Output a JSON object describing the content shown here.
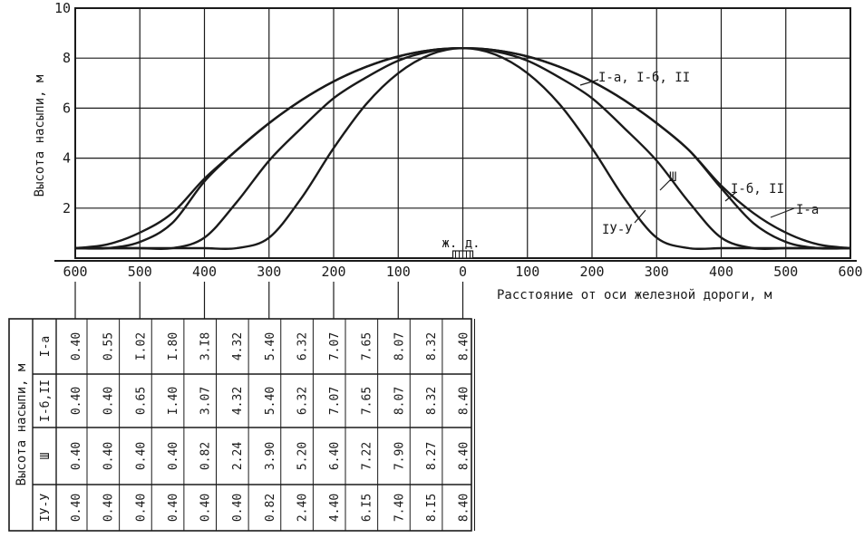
{
  "chart_data": {
    "type": "line",
    "xlabel": "Расстояние от оси железной дороги, м",
    "ylabel": "Высота насыпи, м",
    "xlim": [
      -600,
      600
    ],
    "ylim": [
      0,
      10
    ],
    "x_ticks": [
      600,
      500,
      400,
      300,
      200,
      100,
      0,
      100,
      200,
      300,
      400,
      500,
      600
    ],
    "y_ticks": [
      10,
      8,
      6,
      4,
      2
    ],
    "grid": true,
    "railway_marker": "ж. д.",
    "series": [
      {
        "name": "I-а",
        "table_label": "I-а",
        "x": [
          -600,
          -550,
          -500,
          -450,
          -400,
          -350,
          -300,
          -250,
          -200,
          -150,
          -100,
          -50,
          0,
          50,
          100,
          150,
          200,
          250,
          300,
          350,
          400,
          450,
          500,
          550,
          600
        ],
        "y": [
          0.4,
          0.55,
          1.02,
          1.8,
          3.18,
          4.32,
          5.4,
          6.32,
          7.07,
          7.65,
          8.07,
          8.32,
          8.4,
          8.32,
          8.07,
          7.65,
          7.07,
          6.32,
          5.4,
          4.32,
          2.9,
          1.8,
          1.02,
          0.55,
          0.4
        ]
      },
      {
        "name": "I-б, II",
        "table_label": "I-б,II",
        "x": [
          -600,
          -550,
          -500,
          -450,
          -400,
          -350,
          -300,
          -250,
          -200,
          -150,
          -100,
          -50,
          0,
          50,
          100,
          150,
          200,
          250,
          300,
          350,
          400,
          450,
          500,
          550,
          600
        ],
        "y": [
          0.4,
          0.4,
          0.65,
          1.4,
          3.07,
          4.32,
          5.4,
          6.32,
          7.07,
          7.65,
          8.07,
          8.32,
          8.4,
          8.32,
          8.07,
          7.65,
          7.07,
          6.32,
          5.4,
          4.32,
          2.8,
          1.4,
          0.65,
          0.4,
          0.4
        ]
      },
      {
        "name": "Ш",
        "table_label": "Ш",
        "x": [
          -600,
          -550,
          -500,
          -450,
          -400,
          -350,
          -300,
          -250,
          -200,
          -150,
          -100,
          -50,
          0,
          50,
          100,
          150,
          200,
          250,
          300,
          350,
          400,
          450,
          500,
          550,
          600
        ],
        "y": [
          0.4,
          0.4,
          0.4,
          0.4,
          0.82,
          2.24,
          3.9,
          5.2,
          6.4,
          7.22,
          7.9,
          8.27,
          8.4,
          8.27,
          7.9,
          7.22,
          6.4,
          5.2,
          3.9,
          2.24,
          0.82,
          0.4,
          0.4,
          0.4,
          0.4
        ]
      },
      {
        "name": "IУ-У",
        "table_label": "IУ-У",
        "x": [
          -600,
          -550,
          -500,
          -450,
          -400,
          -350,
          -300,
          -250,
          -200,
          -150,
          -100,
          -50,
          0,
          50,
          100,
          150,
          200,
          250,
          300,
          350,
          400,
          450,
          500,
          550,
          600
        ],
        "y": [
          0.4,
          0.4,
          0.4,
          0.4,
          0.4,
          0.4,
          0.82,
          2.4,
          4.4,
          6.15,
          7.4,
          8.15,
          8.4,
          8.15,
          7.4,
          6.15,
          4.4,
          2.4,
          0.82,
          0.4,
          0.4,
          0.4,
          0.4,
          0.4,
          0.4
        ]
      }
    ],
    "curve_labels": [
      "I-а, I-б, II",
      "Ш",
      "I-б, II",
      "I-а",
      "IУ-У"
    ],
    "table": {
      "header": "Высота насыпи, м",
      "rows": [
        {
          "label": "I-а",
          "values": [
            "0.40",
            "0.55",
            "I.02",
            "I.80",
            "3.I8",
            "4.32",
            "5.40",
            "6.32",
            "7.07",
            "7.65",
            "8.07",
            "8.32",
            "8.40"
          ]
        },
        {
          "label": "I-б,II",
          "values": [
            "0.40",
            "0.40",
            "0.65",
            "I.40",
            "3.07",
            "4.32",
            "5.40",
            "6.32",
            "7.07",
            "7.65",
            "8.07",
            "8.32",
            "8.40"
          ]
        },
        {
          "label": "Ш",
          "values": [
            "0.40",
            "0.40",
            "0.40",
            "0.40",
            "0.82",
            "2.24",
            "3.90",
            "5.20",
            "6.40",
            "7.22",
            "7.90",
            "8.27",
            "8.40"
          ]
        },
        {
          "label": "IУ-У",
          "values": [
            "0.40",
            "0.40",
            "0.40",
            "0.40",
            "0.40",
            "0.40",
            "0.82",
            "2.40",
            "4.40",
            "6.I5",
            "7.40",
            "8.I5",
            "8.40"
          ]
        }
      ]
    }
  }
}
